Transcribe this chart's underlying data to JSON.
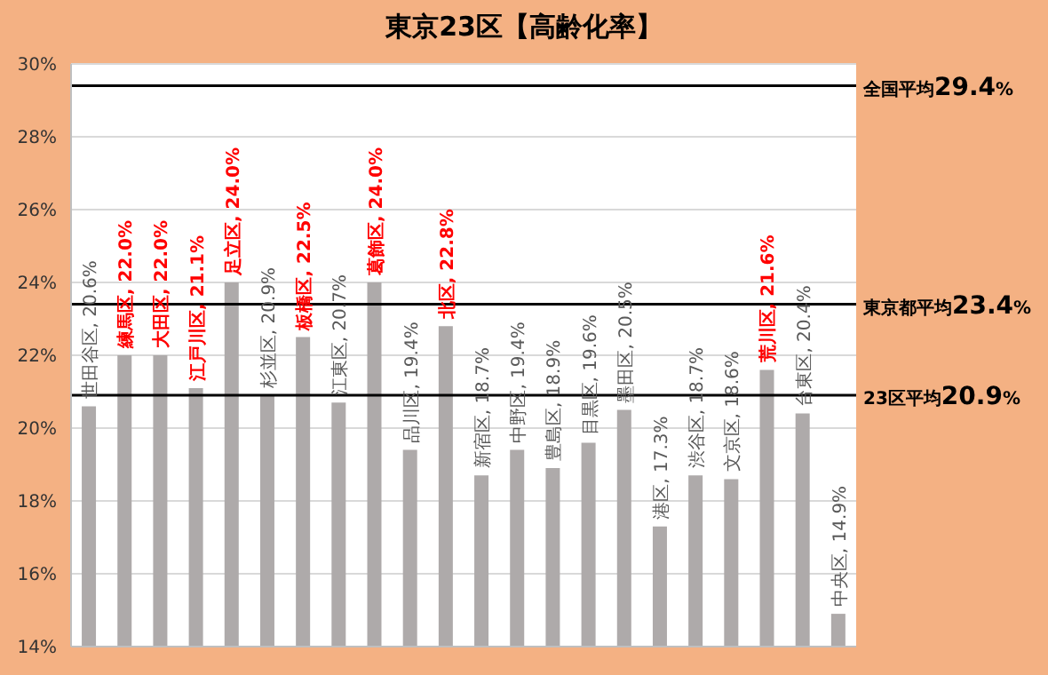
{
  "chart_data": {
    "type": "bar",
    "title": "東京23区【高齢化率】",
    "categories": [
      null,
      null,
      null,
      null,
      null,
      null,
      null,
      null,
      null,
      null,
      null,
      null,
      null,
      null,
      null,
      null,
      null,
      null,
      null,
      null,
      null,
      null
    ],
    "values": [
      20.6,
      22.0,
      22.0,
      21.1,
      24.0,
      20.9,
      22.5,
      20.7,
      24.0,
      19.4,
      22.8,
      18.7,
      19.4,
      18.9,
      19.6,
      20.5,
      17.3,
      18.7,
      18.6,
      21.6,
      20.4,
      14.9
    ],
    "color": "#aeaaaa",
    "value_labels": [
      "世田谷区, 20.6%",
      "練馬区, 22.0%",
      "大田区, 22.0%",
      "江戸川区, 21.1%",
      "足立区, 24.0%",
      "杉並区, 20.9%",
      "板橋区, 22.5%",
      "江東区, 20.7%",
      "葛飾区, 24.0%",
      "品川区, 19.4%",
      "北区, 22.8%",
      "新宿区, 18.7%",
      "中野区, 19.4%",
      "豊島区, 18.9%",
      "目黒区, 19.6%",
      "墨田区, 20.5%",
      "港区, 17.3%",
      "渋谷区, 18.7%",
      "文京区, 18.6%",
      "荒川区, 21.6%",
      "台東区, 20.4%",
      "中央区, 14.9%"
    ],
    "ylim": [
      14,
      30
    ],
    "yticks": [
      {
        "value": 14,
        "label": "14%"
      },
      {
        "value": 16,
        "label": "16%"
      },
      {
        "value": 18,
        "label": "18%"
      },
      {
        "value": 20,
        "label": "20%"
      },
      {
        "value": 22,
        "label": "22%"
      },
      {
        "value": 24,
        "label": "24%"
      },
      {
        "value": 26,
        "label": "26%"
      },
      {
        "value": 28,
        "label": "28%"
      },
      {
        "value": 30,
        "label": "30%"
      }
    ],
    "ref_lines": [
      {
        "axis": "y",
        "value": 29.4,
        "label": "全国平均29.4%",
        "color": "#000000"
      },
      {
        "axis": "y",
        "value": 23.4,
        "label": "東京都平均23.4%",
        "color": "#000000"
      },
      {
        "axis": "y",
        "value": 20.9,
        "label": "23区平均20.9%",
        "color": "#000000"
      }
    ],
    "grid": "y",
    "tick_labels": "y",
    "legend": false
  }
}
